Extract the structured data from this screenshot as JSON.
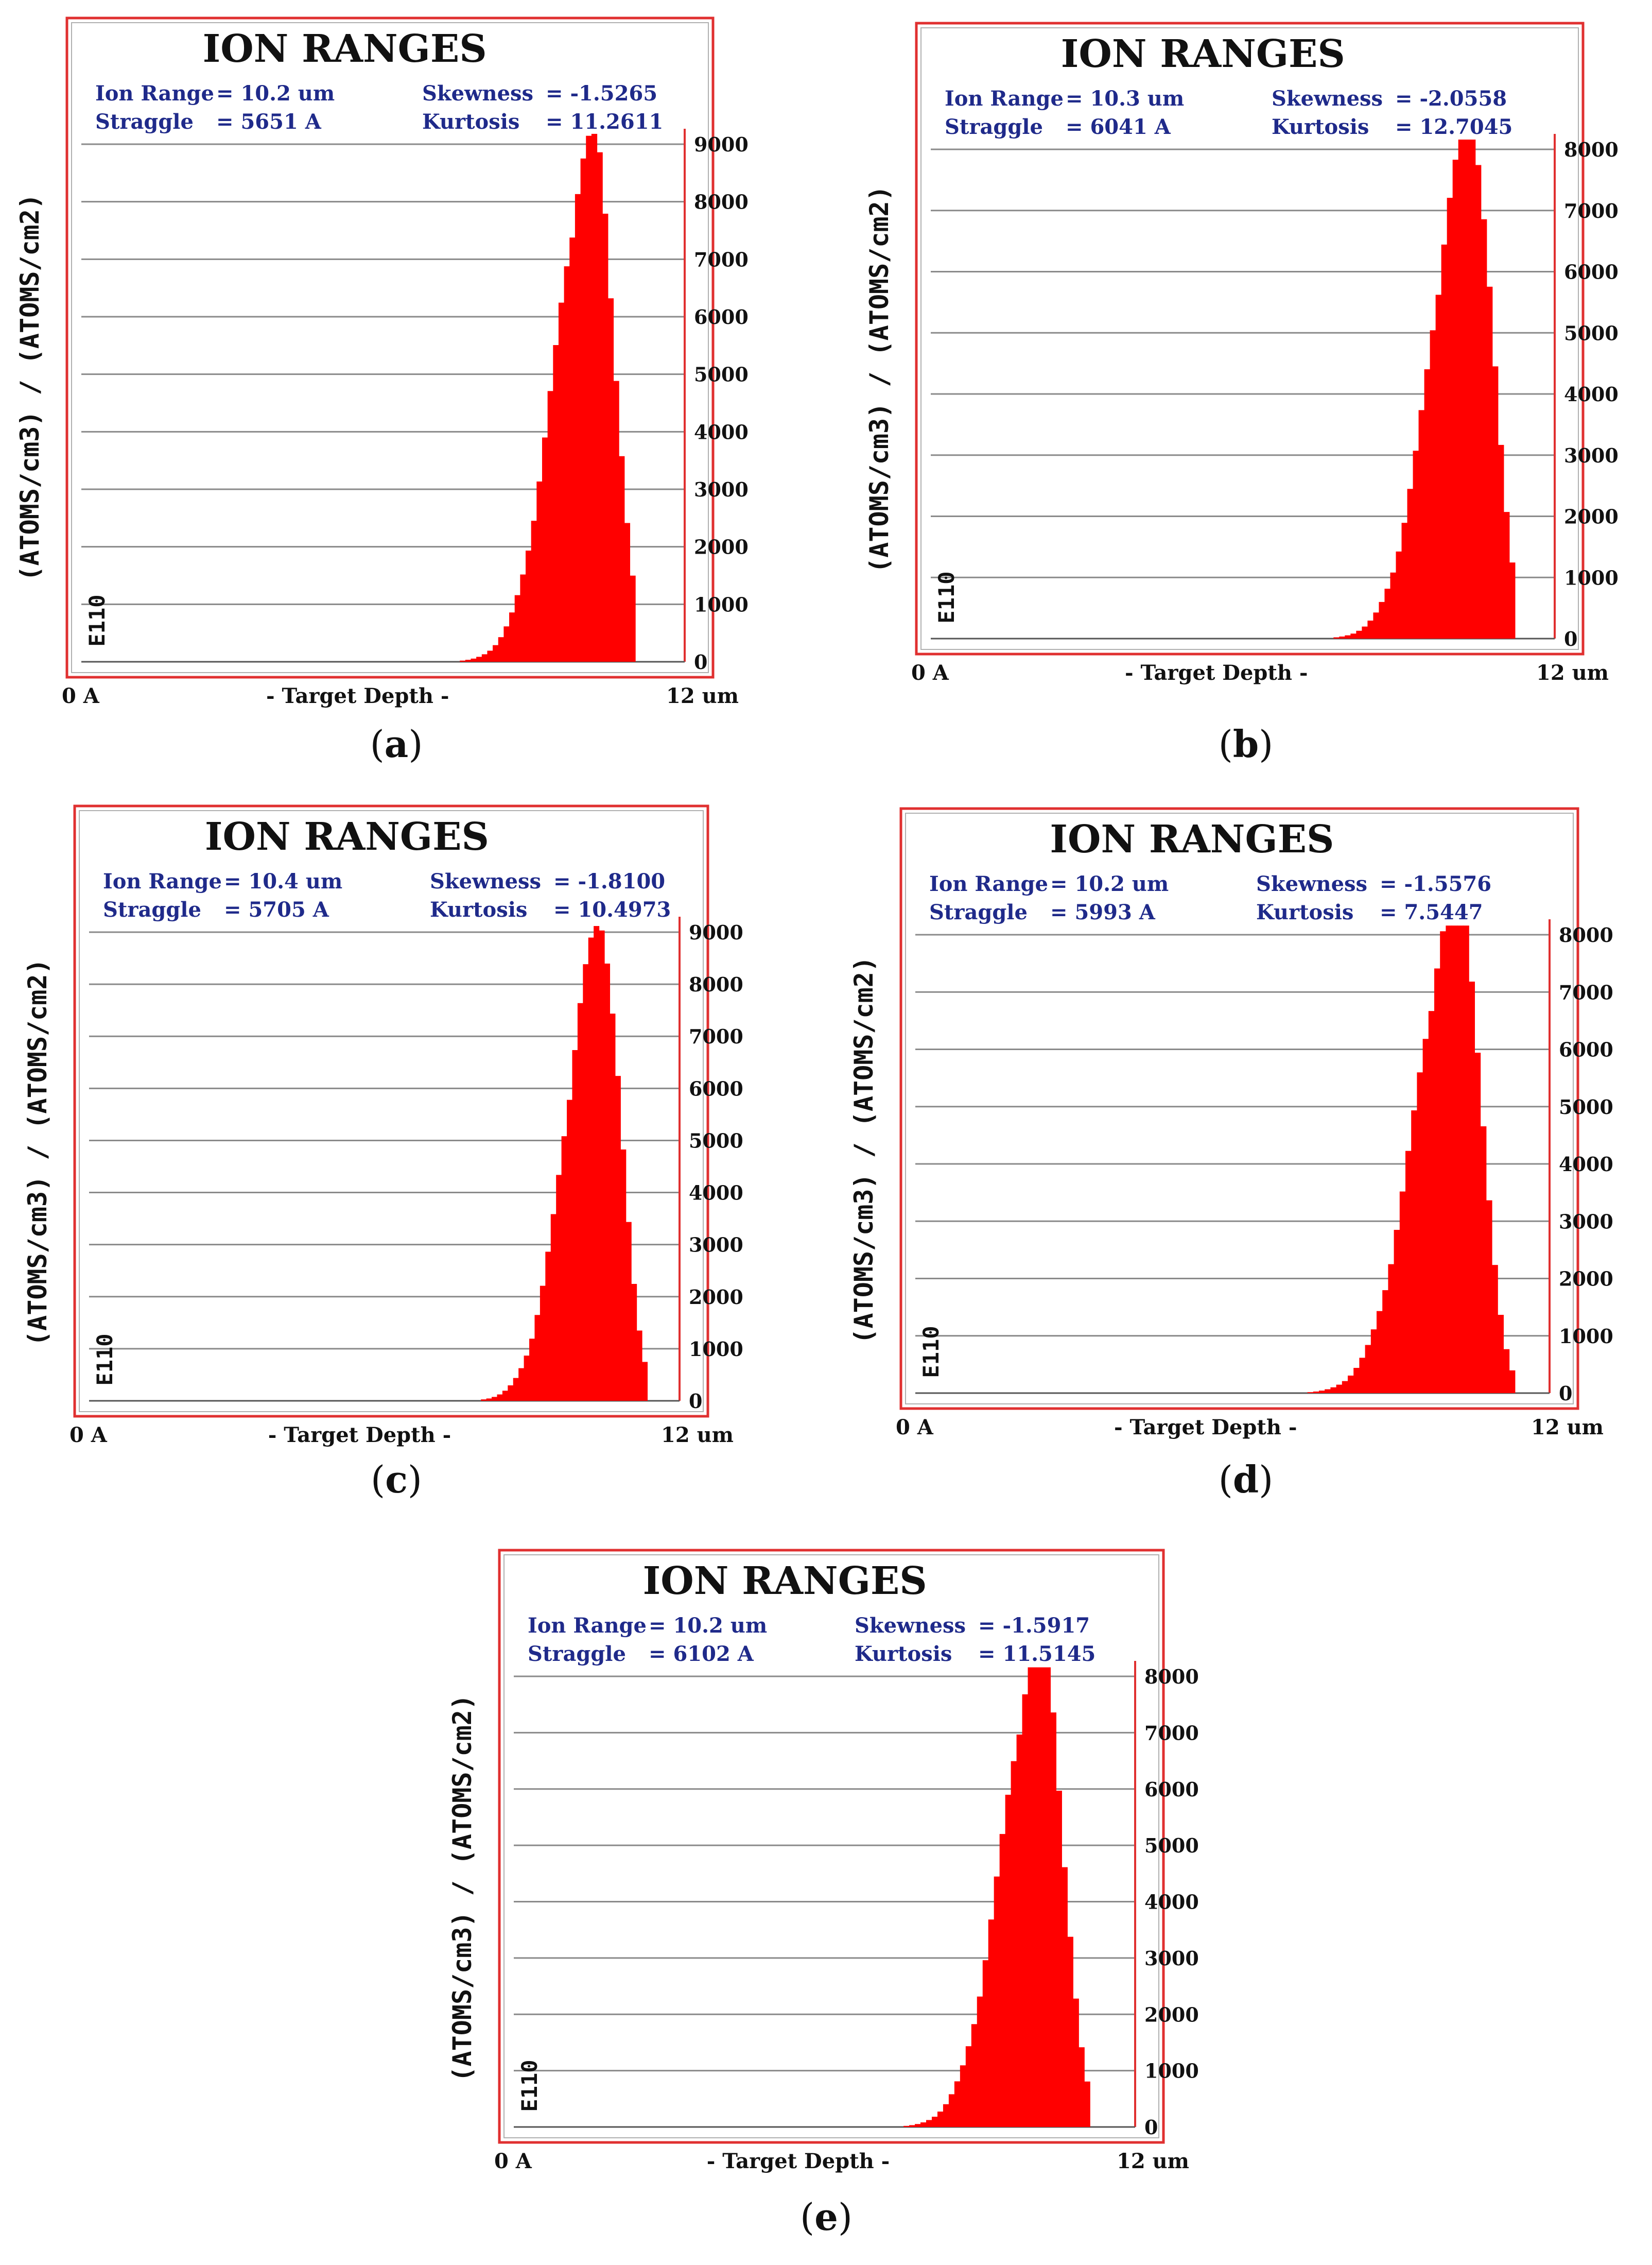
{
  "colors": {
    "bar": "#ff0000",
    "frame": "#e03030",
    "grid": "#8a8a8a",
    "stats_text": "#1f2a8a",
    "text": "#111111"
  },
  "chart_data": [
    {
      "panel": "a",
      "caption_letter": "a",
      "type": "bar",
      "title": "ION RANGES",
      "stats": {
        "ion_range_label": "Ion Range",
        "ion_range_value": "=  10.2 um",
        "straggle_label": "Straggle",
        "straggle_value": "=  5651 A",
        "skewness_label": "Skewness",
        "skewness_value": "= -1.5265",
        "kurtosis_label": "Kurtosis",
        "kurtosis_value": "= 11.2611"
      },
      "ylabel": "(ATOMS/cm3) / (ATOMS/cm2)",
      "unit_label": "E110",
      "xlabel": "- Target Depth -",
      "x_start_label": "0 A",
      "x_end_label": "12 um",
      "xlim": [
        0,
        12
      ],
      "ylim": [
        0,
        9000
      ],
      "yticks": [
        0,
        1000,
        2000,
        3000,
        4000,
        5000,
        6000,
        7000,
        8000,
        9000
      ],
      "profile": {
        "peak_depth_um": 10.2,
        "peak_value": 9000,
        "sigma_left_um": 0.75,
        "sigma_right_um": 0.4,
        "onset_um": 6.6,
        "cutoff_um": 11.0
      }
    },
    {
      "panel": "b",
      "caption_letter": "b",
      "type": "bar",
      "title": "ION RANGES",
      "stats": {
        "ion_range_label": "Ion Range",
        "ion_range_value": "=  10.3 um",
        "straggle_label": "Straggle",
        "straggle_value": "=  6041 A",
        "skewness_label": "Skewness",
        "skewness_value": "= -2.0558",
        "kurtosis_label": "Kurtosis",
        "kurtosis_value": "= 12.7045"
      },
      "ylabel": "(ATOMS/cm3) / (ATOMS/cm2)",
      "unit_label": "E110",
      "xlabel": "- Target Depth -",
      "x_start_label": "0 A",
      "x_end_label": "12 um",
      "xlim": [
        0,
        12
      ],
      "ylim": [
        0,
        8000
      ],
      "yticks": [
        0,
        1000,
        2000,
        3000,
        4000,
        5000,
        6000,
        7000,
        8000
      ],
      "profile": {
        "peak_depth_um": 10.4,
        "peak_value": 8300,
        "sigma_left_um": 0.75,
        "sigma_right_um": 0.4,
        "onset_um": 6.8,
        "cutoff_um": 11.2
      }
    },
    {
      "panel": "c",
      "caption_letter": "c",
      "type": "bar",
      "title": "ION RANGES",
      "stats": {
        "ion_range_label": "Ion Range",
        "ion_range_value": "=  10.4 um",
        "straggle_label": "Straggle",
        "straggle_value": "=  5705 A",
        "skewness_label": "Skewness",
        "skewness_value": "= -1.8100",
        "kurtosis_label": "Kurtosis",
        "kurtosis_value": "= 10.4973"
      },
      "ylabel": "(ATOMS/cm3) / (ATOMS/cm2)",
      "unit_label": "E110",
      "xlabel": "- Target Depth -",
      "x_start_label": "0 A",
      "x_end_label": "12 um",
      "xlim": [
        0,
        12
      ],
      "ylim": [
        0,
        9000
      ],
      "yticks": [
        0,
        1000,
        2000,
        3000,
        4000,
        5000,
        6000,
        7000,
        8000,
        9000
      ],
      "profile": {
        "peak_depth_um": 10.4,
        "peak_value": 9000,
        "sigma_left_um": 0.7,
        "sigma_right_um": 0.4,
        "onset_um": 7.2,
        "cutoff_um": 11.3
      }
    },
    {
      "panel": "d",
      "caption_letter": "d",
      "type": "bar",
      "title": "ION RANGES",
      "stats": {
        "ion_range_label": "Ion Range",
        "ion_range_value": "=  10.2 um",
        "straggle_label": "Straggle",
        "straggle_value": "=  5993 A",
        "skewness_label": "Skewness",
        "skewness_value": "= -1.5576",
        "kurtosis_label": "Kurtosis",
        "kurtosis_value": "= 7.5447"
      },
      "ylabel": "(ATOMS/cm3) / (ATOMS/cm2)",
      "unit_label": "E110",
      "xlabel": "- Target Depth -",
      "x_start_label": "0 A",
      "x_end_label": "12 um",
      "xlim": [
        0,
        12
      ],
      "ylim": [
        0,
        8000
      ],
      "yticks": [
        0,
        1000,
        2000,
        3000,
        4000,
        5000,
        6000,
        7000,
        8000
      ],
      "profile": {
        "peak_depth_um": 10.3,
        "peak_value": 8600,
        "sigma_left_um": 0.8,
        "sigma_right_um": 0.4,
        "onset_um": 6.5,
        "cutoff_um": 11.3
      }
    },
    {
      "panel": "e",
      "caption_letter": "e",
      "type": "bar",
      "title": "ION RANGES",
      "stats": {
        "ion_range_label": "Ion Range",
        "ion_range_value": "=  10.2 um",
        "straggle_label": "Straggle",
        "straggle_value": "=  6102 A",
        "skewness_label": "Skewness",
        "skewness_value": "= -1.5917",
        "kurtosis_label": "Kurtosis",
        "kurtosis_value": "= 11.5145"
      },
      "ylabel": "(ATOMS/cm3) / (ATOMS/cm2)",
      "unit_label": "E110",
      "xlabel": "- Target Depth -",
      "x_start_label": "0 A",
      "x_end_label": "12 um",
      "xlim": [
        0,
        12
      ],
      "ylim": [
        0,
        8000
      ],
      "yticks": [
        0,
        1000,
        2000,
        3000,
        4000,
        5000,
        6000,
        7000,
        8000
      ],
      "profile": {
        "peak_depth_um": 10.2,
        "peak_value": 8500,
        "sigma_left_um": 0.75,
        "sigma_right_um": 0.4,
        "onset_um": 7.0,
        "cutoff_um": 11.1
      }
    }
  ]
}
